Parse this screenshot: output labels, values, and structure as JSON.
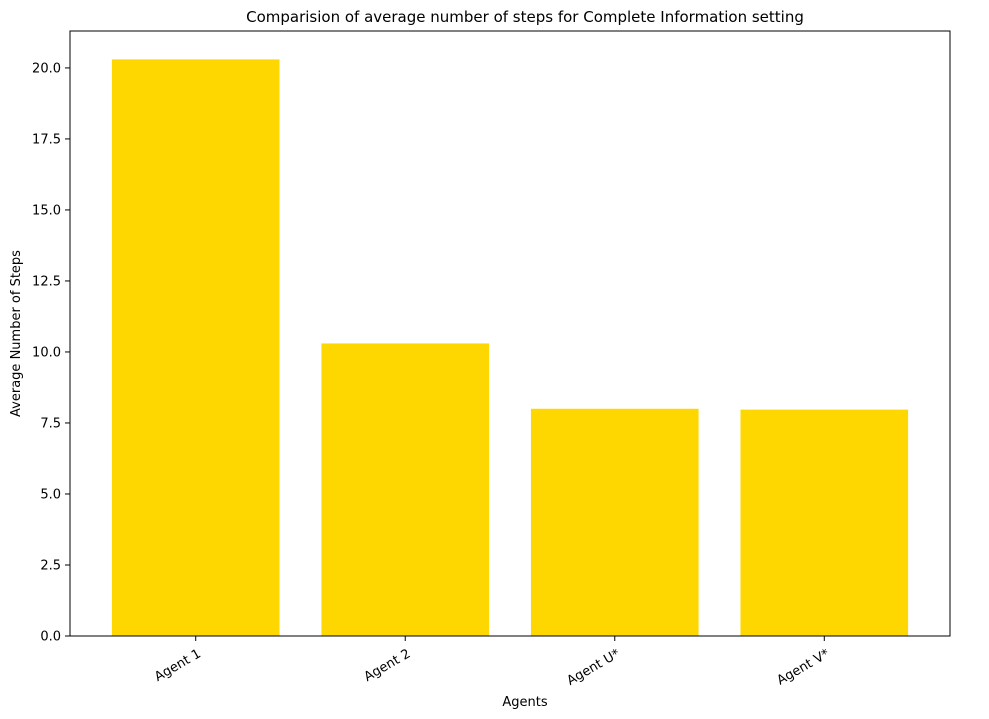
{
  "chart_data": {
    "type": "bar",
    "title": "Comparision of average number of steps for Complete Information setting",
    "xlabel": "Agents",
    "ylabel": "Average Number of Steps",
    "categories": [
      "Agent 1",
      "Agent 2",
      "Agent U*",
      "Agent V*"
    ],
    "values": [
      20.3,
      10.3,
      8.0,
      7.97
    ],
    "ylim": [
      0,
      21.3
    ],
    "yticks": [
      0.0,
      2.5,
      5.0,
      7.5,
      10.0,
      12.5,
      15.0,
      17.5,
      20.0
    ],
    "ytick_labels": [
      "0.0",
      "2.5",
      "5.0",
      "7.5",
      "10.0",
      "12.5",
      "15.0",
      "17.5",
      "20.0"
    ],
    "xtick_rotation": 30,
    "bar_color": "#FFD700",
    "grid": false,
    "legend": false
  }
}
